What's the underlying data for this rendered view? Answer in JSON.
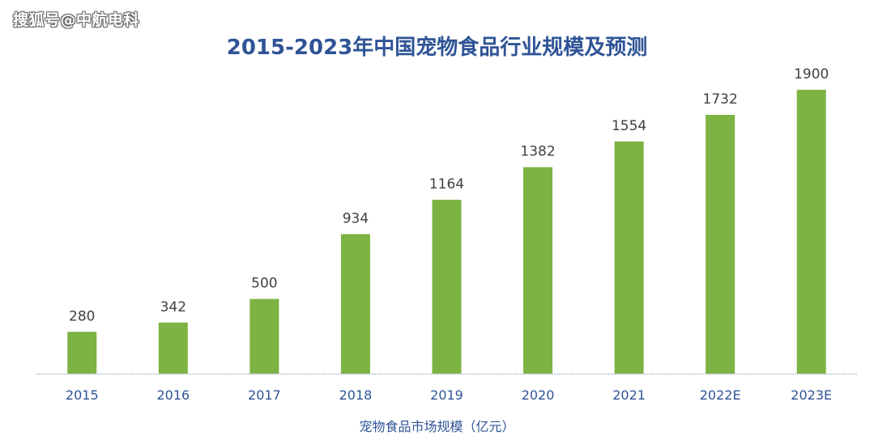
{
  "watermark": "搜狐号@中航电科",
  "chart_data": {
    "type": "bar",
    "title": "2015-2023年中国宠物食品行业规模及预测",
    "categories": [
      "2015",
      "2016",
      "2017",
      "2018",
      "2019",
      "2020",
      "2021",
      "2022E",
      "2023E"
    ],
    "values": [
      280,
      342,
      500,
      934,
      1164,
      1382,
      1554,
      1732,
      1900
    ],
    "xlabel": "宠物食品市场规模（亿元）",
    "ylabel": "",
    "ylim": [
      0,
      1900
    ],
    "grid": false,
    "legend": "none",
    "bar_color": "#7cb342",
    "axis_color": "#b8c2d6"
  }
}
